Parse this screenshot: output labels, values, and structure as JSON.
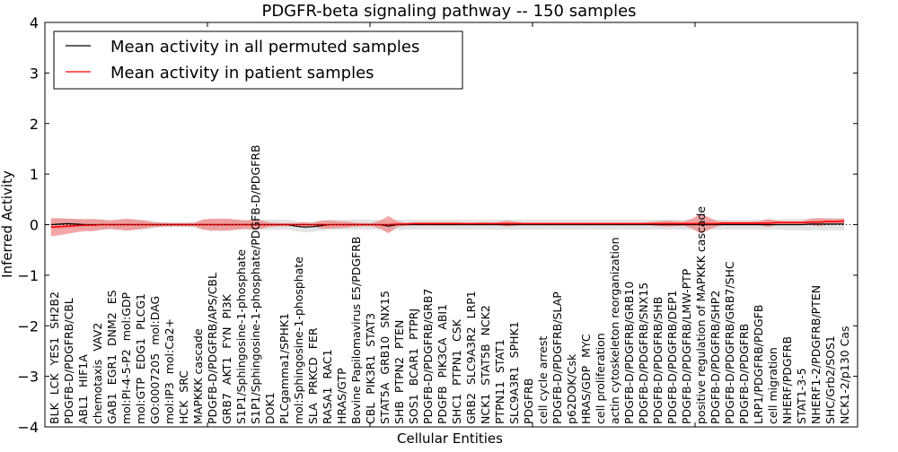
{
  "chart_data": {
    "type": "line",
    "title": "PDGFR-beta signaling pathway -- 150 samples",
    "xlabel": "Cellular Entities",
    "ylabel": "Inferred Activity",
    "ylim": [
      -4,
      4
    ],
    "xlim": [
      0,
      100
    ],
    "yticks": [
      "4",
      "3",
      "2",
      "1",
      "0",
      "−1",
      "−2",
      "−3",
      "−4"
    ],
    "ytick_values": [
      4,
      3,
      2,
      1,
      0,
      -1,
      -2,
      -3,
      -4
    ],
    "xtick_values": [
      0,
      20,
      40,
      60,
      80,
      100
    ],
    "grid": false,
    "legend_position": "top-left",
    "legend": [
      {
        "label": "Mean activity in all permuted samples",
        "color": "#000000"
      },
      {
        "label": "Mean activity in patient samples",
        "color": "#ff0000"
      }
    ],
    "categories": [
      "BLK",
      "LCK",
      "YES1",
      "SH2B2",
      "PDGFB-D/PDGFRB/CBL",
      "ABL1",
      "HIF1A",
      "chemotaxis",
      "VAV2",
      "GAB1",
      "EGR1",
      "DNM2",
      "ES",
      "mol:PI-4-5-P2",
      "mol:GDP",
      "mol:GTP",
      "EDG1",
      "PLCG1",
      "GO:0007205",
      "mol:DAG",
      "mol:IP3",
      "mol:Ca2+",
      "HCK",
      "SRC",
      "MAPKKK cascade",
      "PDGFB-D/PDGFRB/APS/CBL",
      "GRB7",
      "AKT1",
      "FYN",
      "PI3K",
      "S1P1/Sphingosine-1-phosphate",
      "S1P1/Sphingosine-1-phosphate/PDGFB-D/PDGFRB",
      "DOK1",
      "PLCgamma1/SPHK1",
      "mol:Sphingosine-1-phosphate",
      "SLA",
      "PRKCD",
      "FER",
      "RASA1",
      "RAC1",
      "HRAS/GTP",
      "Bovine Papilomavirus E5/PDGFRB",
      "CBL",
      "PIK3R1",
      "STAT3",
      "STAT5A",
      "GRB10",
      "SNX15",
      "SHB",
      "PTPN2",
      "PTEN",
      "SOS1",
      "BCAR1",
      "PTPRJ",
      "PDGFB-D/PDGFRB/GRB7",
      "PDGFB",
      "PIK3CA",
      "ABI1",
      "SHC1",
      "PTPN1",
      "CSK",
      "GRB2",
      "SLC9A3R2",
      "LRP1",
      "NCK1",
      "STAT5B",
      "NCK2",
      "PTPN11",
      "STAT1",
      "SLC9A3R1",
      "SPHK1",
      "PDGFRB",
      "cell cycle arrest",
      "PDGFB-D/PDGFRB/SLAP",
      "p62DOK/Csk",
      "HRAS/GDP",
      "MYC",
      "cell proliferation",
      "actin cytoskeleton reorganization",
      "PDGFB-D/PDGFRB/GRB10",
      "PDGFB-D/PDGFRB/SNX15",
      "PDGFB-D/PDGFRB/SHB",
      "PDGFB-D/PDGFRB/DEP1",
      "PDGFB-D/PDGFRB/LMW-PTP",
      "positive regulation of MAPKKK cascade",
      "PDGFB-D/PDGFRB/SHP2",
      "PDGFB-D/PDGFRB/GRB7/SHC",
      "PDGFB-D/PDGFRB",
      "LRP1/PDGFRB/PDGFB",
      "cell migration",
      "NHERF/PDGFRB",
      "STAT1-3-5",
      "NHERF1-2/PDGFRB/PTEN",
      "SHC/Grb2/SOS1",
      "NCK1-2/p130 Cas"
    ],
    "series": [
      {
        "name": "Mean activity in all permuted samples",
        "color": "#000000",
        "band_color": "#d9d9d9",
        "values": [
          0,
          0.01,
          0.02,
          0.01,
          0,
          0,
          0,
          0,
          0,
          0,
          0,
          0,
          0,
          0,
          0,
          0,
          0,
          0,
          0,
          0,
          0,
          0,
          0,
          0,
          0,
          0,
          0,
          0,
          0,
          -0.03,
          -0.05,
          -0.04,
          -0.02,
          0,
          0,
          0,
          0,
          0,
          0,
          0,
          -0.03,
          0,
          0,
          0,
          0,
          0,
          0,
          0,
          0,
          0,
          0,
          0,
          0,
          0,
          0,
          0,
          0,
          0,
          0,
          0,
          0,
          0,
          0,
          0,
          0,
          0,
          0,
          0,
          0,
          0,
          0,
          0,
          0,
          0,
          0,
          0,
          0,
          0,
          0,
          0,
          0,
          0,
          0,
          0,
          0,
          0,
          0,
          0,
          0,
          0,
          0.01,
          0.01,
          0.01,
          0.01,
          0.01
        ],
        "band": [
          0.1,
          0.1,
          0.1,
          0.1,
          0.1,
          0.1,
          0.1,
          0.1,
          0.1,
          0.1,
          0.1,
          0.1,
          0.08,
          0.05,
          0.05,
          0.05,
          0.05,
          0.06,
          0.1,
          0.1,
          0.1,
          0.1,
          0.1,
          0.1,
          0.1,
          0.1,
          0.1,
          0.1,
          0.1,
          0.1,
          0.1,
          0.1,
          0.1,
          0.1,
          0.1,
          0.1,
          0.1,
          0.1,
          0.1,
          0.1,
          0.1,
          0.1,
          0.1,
          0.1,
          0.1,
          0.1,
          0.1,
          0.1,
          0.1,
          0.1,
          0.1,
          0.1,
          0.1,
          0.1,
          0.1,
          0.1,
          0.1,
          0.1,
          0.1,
          0.1,
          0.1,
          0.1,
          0.1,
          0.1,
          0.1,
          0.1,
          0.1,
          0.1,
          0.1,
          0.1,
          0.1,
          0.1,
          0.1,
          0.1,
          0.1,
          0.1,
          0.1,
          0.1,
          0.1,
          0.1,
          0.1,
          0.1,
          0.1,
          0.1,
          0.1,
          0.1,
          0.1,
          0.11,
          0.11,
          0.11,
          0.12,
          0.12,
          0.12,
          0.12,
          0.12
        ]
      },
      {
        "name": "Mean activity in patient samples",
        "color": "#ff0000",
        "band_color": "#f08080",
        "values": [
          -0.05,
          -0.04,
          -0.03,
          -0.02,
          -0.01,
          -0.01,
          0,
          0,
          0,
          0,
          0,
          0,
          0,
          0,
          0,
          0,
          0,
          0,
          0,
          0,
          0,
          0,
          0,
          0,
          0,
          0,
          0,
          0,
          0,
          0,
          0,
          0,
          0,
          0,
          0,
          0,
          0,
          0,
          0,
          0,
          0,
          0.01,
          0.01,
          0.02,
          0.02,
          0.02,
          0.02,
          0.02,
          0.02,
          0.02,
          0.02,
          0.02,
          0.02,
          0.02,
          0.02,
          0.02,
          0.02,
          0.02,
          0.02,
          0.02,
          0.02,
          0.02,
          0.02,
          0.02,
          0.02,
          0.02,
          0.02,
          0.02,
          0.02,
          0.02,
          0.02,
          0.02,
          0.02,
          0.02,
          0.02,
          0.02,
          0.02,
          0.02,
          0.02,
          0.02,
          0.03,
          0.03,
          0.03,
          0.03,
          0.03,
          0.03,
          0.04,
          0.04,
          0.04,
          0.04,
          0.05,
          0.05,
          0.06,
          0.06,
          0.07
        ],
        "band": [
          0.18,
          0.17,
          0.15,
          0.13,
          0.12,
          0.12,
          0.1,
          0.08,
          0.1,
          0.12,
          0.1,
          0.08,
          0.05,
          0.04,
          0.03,
          0.03,
          0.03,
          0.03,
          0.1,
          0.12,
          0.12,
          0.12,
          0.1,
          0.08,
          0.1,
          0.08,
          0.04,
          0.03,
          0.03,
          0.03,
          0.05,
          0.03,
          0.08,
          0.08,
          0.07,
          0.06,
          0.04,
          0.03,
          0.03,
          0.08,
          0.17,
          0.06,
          0.03,
          0.03,
          0.03,
          0.03,
          0.03,
          0.03,
          0.03,
          0.02,
          0.02,
          0.03,
          0.02,
          0.03,
          0.06,
          0.04,
          0.02,
          0.02,
          0.02,
          0.02,
          0.02,
          0.02,
          0.02,
          0.02,
          0.02,
          0.02,
          0.02,
          0.02,
          0.02,
          0.02,
          0.02,
          0.03,
          0.05,
          0.06,
          0.05,
          0.04,
          0.1,
          0.2,
          0.12,
          0.05,
          0.03,
          0.03,
          0.03,
          0.03,
          0.04,
          0.08,
          0.04,
          0.03,
          0.03,
          0.03,
          0.06,
          0.08,
          0.06,
          0.05,
          0.05
        ]
      }
    ]
  }
}
